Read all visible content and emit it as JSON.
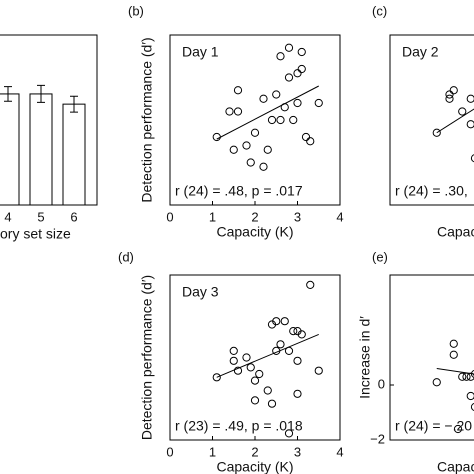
{
  "chart_data": [
    {
      "type": "bar",
      "xlabel": "ory set size",
      "categories": [
        "4",
        "5",
        "6"
      ],
      "values": [
        1.96,
        1.96,
        1.78
      ],
      "errors": [
        0.13,
        0.15,
        0.14
      ],
      "color": "#ffffff",
      "ylim": [
        0,
        3
      ]
    },
    {
      "type": "scatter",
      "panel": "(b)",
      "title": "Day 1",
      "annotation": "r (24) = .48,  p = .017",
      "xlabel": "Capacity (K)",
      "ylabel": "Detection performance (d′)",
      "x": [
        1.1,
        1.4,
        1.6,
        1.6,
        1.8,
        1.9,
        2.0,
        2.2,
        2.2,
        2.4,
        2.5,
        2.6,
        2.6,
        2.7,
        2.8,
        2.8,
        3.0,
        3.0,
        3.1,
        3.1,
        3.2,
        3.3,
        3.5,
        2.3,
        2.9,
        1.5
      ],
      "y": [
        0.6,
        1.2,
        1.2,
        1.7,
        0.4,
        0.0,
        0.7,
        1.5,
        -0.1,
        1.0,
        1.6,
        1.0,
        2.5,
        1.3,
        2.7,
        2.0,
        1.4,
        2.1,
        2.6,
        2.2,
        0.6,
        0.5,
        1.4,
        0.3,
        1.0,
        0.3
      ],
      "fit": {
        "x": [
          1.1,
          3.5
        ],
        "y": [
          0.55,
          1.8
        ]
      },
      "xlim": [
        0,
        4
      ],
      "xticks": [
        0,
        1,
        2,
        3,
        4
      ],
      "ylim": [
        -1,
        3
      ]
    },
    {
      "type": "scatter",
      "panel": "(c)",
      "title": "Day 2",
      "annotation": "r (24) = .30,",
      "xlabel": "Capac",
      "x": [
        1.1,
        1.4,
        1.5,
        1.7,
        1.9,
        1.9,
        2.0,
        2.2,
        1.4
      ],
      "y": [
        0.7,
        1.6,
        1.7,
        1.2,
        1.5,
        0.9,
        0.1,
        0.2,
        1.5
      ],
      "fit": {
        "x": [
          1.1,
          2.2
        ],
        "y": [
          0.7,
          1.4
        ]
      },
      "xlim": [
        0,
        4
      ],
      "ylim": [
        -1,
        3
      ]
    },
    {
      "type": "scatter",
      "panel": "(d)",
      "title": "Day 3",
      "annotation": "r (23) = .49,  p = .018",
      "xlabel": "Capacity (K)",
      "ylabel": "Detection performance (d′)",
      "x": [
        1.1,
        1.5,
        1.5,
        1.6,
        1.8,
        1.9,
        2.0,
        2.1,
        2.3,
        2.4,
        2.5,
        2.5,
        2.6,
        2.7,
        2.8,
        2.9,
        3.0,
        3.0,
        3.1,
        3.3,
        3.5,
        2.4,
        2.0,
        2.8,
        3.0
      ],
      "y": [
        0.9,
        1.4,
        1.7,
        1.1,
        1.5,
        1.2,
        0.8,
        1.0,
        0.5,
        2.5,
        2.6,
        1.7,
        1.9,
        2.6,
        1.7,
        2.3,
        2.3,
        1.4,
        2.2,
        3.7,
        1.1,
        0.1,
        0.2,
        -0.8,
        0.4
      ],
      "fit": {
        "x": [
          1.1,
          3.5
        ],
        "y": [
          0.9,
          2.2
        ]
      },
      "xlim": [
        0,
        4
      ],
      "xticks": [
        0,
        1,
        2,
        3,
        4
      ],
      "ylim": [
        -1,
        4
      ]
    },
    {
      "type": "scatter",
      "panel": "(e)",
      "annotation": "r (24) = −.20",
      "xlabel": "Capac",
      "ylabel": "Increase in d′",
      "x": [
        1.1,
        1.5,
        1.5,
        1.7,
        1.8,
        1.9,
        2.0,
        1.9,
        2.0,
        1.6,
        2.1
      ],
      "y": [
        0.1,
        1.5,
        1.1,
        0.3,
        0.3,
        0.3,
        0.4,
        -0.4,
        -0.8,
        -1.6,
        0.3
      ],
      "fit": {
        "x": [
          1.1,
          2.2
        ],
        "y": [
          0.6,
          0.35
        ]
      },
      "xlim": [
        0,
        4
      ],
      "ylim": [
        -2,
        4
      ],
      "yticks": [
        {
          "value": -2,
          "label": "−2"
        },
        0
      ]
    }
  ]
}
